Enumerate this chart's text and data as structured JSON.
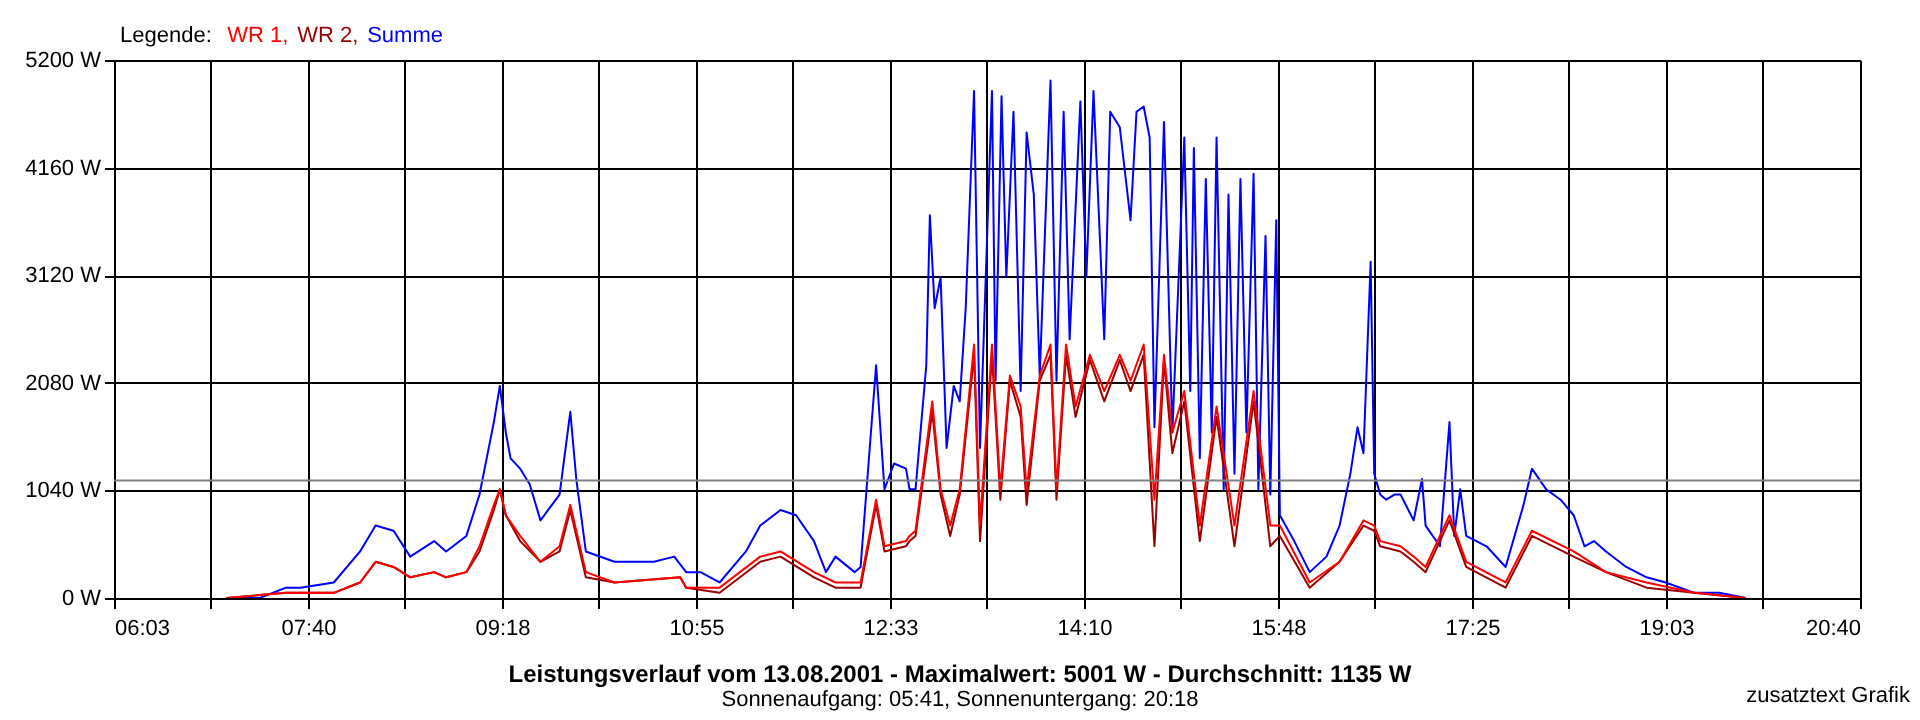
{
  "chart_data": {
    "type": "line",
    "title": "Leistungsverlauf vom 13.08.2001 - Maximalwert: 5001 W - Durchschnitt: 1135 W",
    "subtitle": "Sonnenaufgang: 05:41, Sonnenuntergang: 20:18",
    "legend_title": "Legende:",
    "legend": "top left",
    "grid": true,
    "annotations": [
      "zusatztext Grafik"
    ],
    "xlim": [
      6.05,
      20.6667
    ],
    "ylim": [
      0,
      5200
    ],
    "xticks": [
      {
        "value": 6.05,
        "label": "06:03"
      },
      {
        "value": 6.862,
        "label": null
      },
      {
        "value": 7.674,
        "label": "07:40"
      },
      {
        "value": 8.486,
        "label": null
      },
      {
        "value": 9.298,
        "label": "09:18"
      },
      {
        "value": 10.11,
        "label": null
      },
      {
        "value": 10.922,
        "label": "10:55"
      },
      {
        "value": 11.734,
        "label": null
      },
      {
        "value": 12.546,
        "label": "12:33"
      },
      {
        "value": 13.358,
        "label": null
      },
      {
        "value": 14.17,
        "label": "14:10"
      },
      {
        "value": 14.982,
        "label": null
      },
      {
        "value": 15.794,
        "label": "15:48"
      },
      {
        "value": 16.606,
        "label": null
      },
      {
        "value": 17.418,
        "label": "17:25"
      },
      {
        "value": 18.23,
        "label": null
      },
      {
        "value": 19.042,
        "label": "19:03"
      },
      {
        "value": 19.854,
        "label": null
      },
      {
        "value": 20.6667,
        "label": "20:40"
      }
    ],
    "yticks": [
      {
        "value": 0,
        "label": "0 W"
      },
      {
        "value": 1040,
        "label": "1040 W"
      },
      {
        "value": 2080,
        "label": "2080 W"
      },
      {
        "value": 3120,
        "label": "3120 W"
      },
      {
        "value": 4160,
        "label": "4160 W"
      },
      {
        "value": 5200,
        "label": "5200 W"
      }
    ],
    "ref_lines": [
      {
        "axis": "y",
        "value": 1135,
        "color": "#808080"
      }
    ],
    "series": [
      {
        "name": "WR 1,",
        "color": "#ff0000",
        "x": [
          6.99,
          7.49,
          7.89,
          8.11,
          8.24,
          8.39,
          8.53,
          8.73,
          8.83,
          9.0,
          9.11,
          9.23,
          9.28,
          9.33,
          9.45,
          9.62,
          9.78,
          9.87,
          10.0,
          10.24,
          10.79,
          10.84,
          11.12,
          11.46,
          11.63,
          11.91,
          12.09,
          12.3,
          12.43,
          12.5,
          12.68,
          12.71,
          12.76,
          12.9,
          12.97,
          13.05,
          13.13,
          13.25,
          13.3,
          13.4,
          13.47,
          13.55,
          13.64,
          13.69,
          13.8,
          13.89,
          13.94,
          14.02,
          14.1,
          14.22,
          14.34,
          14.47,
          14.56,
          14.67,
          14.76,
          14.84,
          14.91,
          15.01,
          15.14,
          15.28,
          15.43,
          15.59,
          15.73,
          15.81,
          16.06,
          16.31,
          16.51,
          16.6,
          16.65,
          16.82,
          16.93,
          17.03,
          17.23,
          17.37,
          17.7,
          17.92,
          18.27,
          18.54,
          18.88,
          19.28,
          19.71
        ],
        "values": [
          0,
          50,
          50,
          150,
          350,
          300,
          200,
          250,
          200,
          250,
          500,
          900,
          1050,
          800,
          600,
          350,
          500,
          900,
          250,
          150,
          200,
          100,
          100,
          400,
          450,
          250,
          150,
          150,
          950,
          500,
          550,
          600,
          650,
          1900,
          1050,
          700,
          1050,
          2450,
          700,
          2450,
          1050,
          2150,
          1850,
          1050,
          2150,
          2450,
          1050,
          2450,
          1850,
          2350,
          2000,
          2350,
          2100,
          2450,
          950,
          2350,
          1600,
          2000,
          700,
          1850,
          700,
          2000,
          700,
          700,
          150,
          350,
          750,
          700,
          550,
          500,
          400,
          300,
          800,
          350,
          150,
          650,
          450,
          250,
          150,
          50,
          0
        ]
      },
      {
        "name": "WR 2,",
        "color": "#990000",
        "x": [
          6.99,
          7.49,
          7.89,
          8.11,
          8.24,
          8.39,
          8.53,
          8.73,
          8.83,
          9.0,
          9.11,
          9.23,
          9.28,
          9.33,
          9.45,
          9.62,
          9.78,
          9.87,
          10.0,
          10.24,
          10.79,
          10.84,
          11.12,
          11.46,
          11.63,
          11.91,
          12.09,
          12.3,
          12.43,
          12.5,
          12.68,
          12.71,
          12.76,
          12.9,
          12.97,
          13.05,
          13.13,
          13.25,
          13.3,
          13.4,
          13.47,
          13.55,
          13.64,
          13.69,
          13.8,
          13.89,
          13.94,
          14.02,
          14.1,
          14.22,
          14.34,
          14.47,
          14.56,
          14.67,
          14.76,
          14.84,
          14.91,
          15.01,
          15.14,
          15.28,
          15.43,
          15.59,
          15.73,
          15.81,
          16.06,
          16.31,
          16.51,
          16.6,
          16.65,
          16.82,
          16.93,
          17.03,
          17.23,
          17.37,
          17.7,
          17.92,
          18.27,
          18.54,
          18.88,
          19.28,
          19.71
        ],
        "values": [
          0,
          50,
          50,
          150,
          350,
          300,
          200,
          250,
          200,
          250,
          450,
          850,
          1050,
          800,
          550,
          350,
          450,
          850,
          200,
          150,
          200,
          100,
          50,
          350,
          400,
          200,
          100,
          100,
          900,
          450,
          500,
          550,
          600,
          1800,
          1000,
          600,
          1000,
          2350,
          550,
          2350,
          950,
          2100,
          1750,
          900,
          2100,
          2350,
          950,
          2350,
          1750,
          2300,
          1900,
          2300,
          2000,
          2350,
          500,
          2300,
          1400,
          1900,
          550,
          1750,
          500,
          1900,
          500,
          600,
          100,
          350,
          700,
          650,
          500,
          450,
          350,
          250,
          750,
          300,
          100,
          600,
          400,
          250,
          100,
          50,
          0
        ]
      },
      {
        "name": "Summe",
        "color": "#0000ff",
        "x": [
          6.99,
          7.27,
          7.49,
          7.61,
          7.89,
          8.11,
          8.24,
          8.39,
          8.53,
          8.73,
          8.83,
          9.0,
          9.11,
          9.23,
          9.28,
          9.33,
          9.37,
          9.45,
          9.53,
          9.62,
          9.78,
          9.87,
          9.92,
          10.0,
          10.24,
          10.57,
          10.74,
          10.84,
          10.96,
          11.12,
          11.34,
          11.46,
          11.63,
          11.76,
          11.91,
          12.01,
          12.09,
          12.25,
          12.3,
          12.36,
          12.43,
          12.5,
          12.58,
          12.68,
          12.71,
          12.76,
          12.85,
          12.88,
          12.92,
          12.97,
          13.02,
          13.08,
          13.13,
          13.18,
          13.25,
          13.3,
          13.4,
          13.43,
          13.48,
          13.52,
          13.58,
          13.64,
          13.69,
          13.75,
          13.8,
          13.89,
          13.94,
          14.0,
          14.05,
          14.14,
          14.19,
          14.25,
          14.34,
          14.39,
          14.47,
          14.56,
          14.61,
          14.67,
          14.72,
          14.76,
          14.84,
          14.91,
          15.01,
          15.06,
          15.09,
          15.14,
          15.19,
          15.24,
          15.28,
          15.34,
          15.38,
          15.43,
          15.48,
          15.53,
          15.59,
          15.63,
          15.69,
          15.73,
          15.78,
          15.81,
          15.93,
          16.06,
          16.2,
          16.31,
          16.4,
          16.46,
          16.51,
          16.57,
          16.6,
          16.65,
          16.7,
          16.77,
          16.82,
          16.93,
          17.0,
          17.03,
          17.15,
          17.23,
          17.27,
          17.32,
          17.37,
          17.54,
          17.7,
          17.85,
          17.92,
          18.04,
          18.16,
          18.27,
          18.36,
          18.44,
          18.54,
          18.71,
          18.88,
          19.04,
          19.28,
          19.49,
          19.71
        ],
        "values": [
          0,
          0,
          100,
          100,
          150,
          450,
          700,
          650,
          400,
          550,
          450,
          600,
          1000,
          1700,
          2050,
          1600,
          1350,
          1250,
          1100,
          750,
          1000,
          1800,
          1150,
          450,
          350,
          350,
          400,
          250,
          250,
          150,
          450,
          700,
          850,
          800,
          550,
          250,
          400,
          250,
          300,
          1200,
          2250,
          1050,
          1300,
          1250,
          1050,
          1050,
          2250,
          3700,
          2800,
          3100,
          1450,
          2050,
          1900,
          2800,
          4900,
          1450,
          4900,
          2100,
          4850,
          3100,
          4700,
          2000,
          4500,
          3900,
          2150,
          5001,
          2100,
          4700,
          2500,
          4800,
          3100,
          4900,
          2500,
          4700,
          4550,
          3650,
          4700,
          4750,
          4450,
          1650,
          4600,
          1600,
          4450,
          2000,
          4350,
          1350,
          4050,
          1600,
          4450,
          1050,
          3900,
          1200,
          4050,
          1600,
          4100,
          1050,
          3500,
          1000,
          3650,
          800,
          550,
          250,
          400,
          700,
          1200,
          1650,
          1400,
          3250,
          1200,
          1000,
          950,
          1000,
          1000,
          750,
          1150,
          700,
          500,
          1700,
          600,
          1050,
          600,
          500,
          300,
          900,
          1250,
          1050,
          950,
          800,
          500,
          550,
          450,
          300,
          200,
          150,
          50,
          50,
          0
        ]
      }
    ]
  }
}
